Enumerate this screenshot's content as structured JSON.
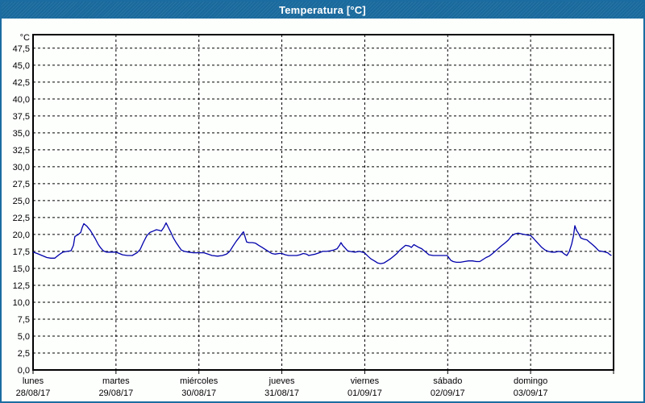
{
  "window": {
    "title": "Temperatura [°C]"
  },
  "colors": {
    "titlebar_bg": "#1b6ca1",
    "titlebar_text": "#ffffff",
    "window_border": "#1b6ca1",
    "content_bg": "#fdfffd",
    "plot_border": "#000000",
    "gridline": "#000000",
    "line": "#0000aa",
    "label_text": "#000000"
  },
  "chart_data": {
    "type": "line",
    "title": "Temperatura [°C]",
    "y_unit_label": "°C",
    "ylim": [
      0,
      49.5
    ],
    "y_tick_step": 2.5,
    "y_tick_labels": [
      "0,0",
      "2,5",
      "5,0",
      "7,5",
      "10,0",
      "12,5",
      "15,0",
      "17,5",
      "20,0",
      "22,5",
      "25,0",
      "27,5",
      "30,0",
      "32,5",
      "35,0",
      "37,5",
      "40,0",
      "42,5",
      "45,0",
      "47,5"
    ],
    "grid": "dashed",
    "legend": "none",
    "x_range_hours": [
      0,
      168
    ],
    "x_days": [
      {
        "name": "lunes",
        "date": "28/08/17"
      },
      {
        "name": "martes",
        "date": "29/08/17"
      },
      {
        "name": "miércoles",
        "date": "30/08/17"
      },
      {
        "name": "jueves",
        "date": "31/08/17"
      },
      {
        "name": "viernes",
        "date": "01/09/17"
      },
      {
        "name": "sábado",
        "date": "02/09/17"
      },
      {
        "name": "domingo",
        "date": "03/09/17"
      }
    ],
    "series": [
      {
        "name": "Temperatura",
        "color": "#0000aa",
        "points": [
          [
            0,
            17.4
          ],
          [
            1.2,
            17.2
          ],
          [
            2.6,
            16.9
          ],
          [
            4.0,
            16.6
          ],
          [
            5.1,
            16.5
          ],
          [
            6.3,
            16.5
          ],
          [
            7.5,
            17.0
          ],
          [
            8.6,
            17.4
          ],
          [
            9.8,
            17.5
          ],
          [
            11.0,
            17.6
          ],
          [
            11.7,
            18.4
          ],
          [
            12.1,
            19.7
          ],
          [
            13.1,
            20.0
          ],
          [
            13.8,
            20.3
          ],
          [
            14.2,
            21.0
          ],
          [
            14.7,
            21.6
          ],
          [
            15.6,
            21.2
          ],
          [
            16.6,
            20.6
          ],
          [
            17.3,
            20.0
          ],
          [
            18.0,
            19.4
          ],
          [
            18.9,
            18.5
          ],
          [
            19.6,
            18.0
          ],
          [
            20.3,
            17.6
          ],
          [
            21.2,
            17.4
          ],
          [
            22.6,
            17.4
          ],
          [
            23.8,
            17.4
          ],
          [
            24.0,
            17.4
          ],
          [
            25.0,
            17.2
          ],
          [
            25.9,
            17.0
          ],
          [
            27.3,
            16.9
          ],
          [
            28.7,
            16.9
          ],
          [
            30.1,
            17.3
          ],
          [
            31.0,
            17.8
          ],
          [
            31.9,
            18.8
          ],
          [
            32.9,
            19.8
          ],
          [
            33.8,
            20.3
          ],
          [
            34.8,
            20.5
          ],
          [
            35.7,
            20.7
          ],
          [
            36.6,
            20.6
          ],
          [
            37.1,
            20.5
          ],
          [
            37.8,
            21.0
          ],
          [
            38.5,
            21.7
          ],
          [
            39.2,
            21.0
          ],
          [
            39.9,
            20.3
          ],
          [
            40.6,
            19.5
          ],
          [
            41.3,
            18.9
          ],
          [
            42.2,
            18.2
          ],
          [
            42.9,
            17.7
          ],
          [
            43.8,
            17.5
          ],
          [
            45.0,
            17.4
          ],
          [
            46.4,
            17.3
          ],
          [
            47.8,
            17.3
          ],
          [
            48.0,
            17.3
          ],
          [
            49.5,
            17.3
          ],
          [
            50.6,
            17.1
          ],
          [
            51.8,
            16.9
          ],
          [
            53.4,
            16.8
          ],
          [
            54.8,
            16.9
          ],
          [
            56.0,
            17.1
          ],
          [
            56.9,
            17.5
          ],
          [
            57.9,
            18.3
          ],
          [
            58.8,
            19.0
          ],
          [
            59.7,
            19.6
          ],
          [
            60.4,
            20.1
          ],
          [
            60.9,
            20.4
          ],
          [
            61.4,
            19.6
          ],
          [
            61.8,
            18.9
          ],
          [
            62.5,
            18.8
          ],
          [
            63.5,
            18.8
          ],
          [
            64.4,
            18.7
          ],
          [
            65.3,
            18.4
          ],
          [
            66.3,
            18.1
          ],
          [
            67.2,
            17.8
          ],
          [
            68.1,
            17.5
          ],
          [
            69.1,
            17.2
          ],
          [
            70.0,
            17.1
          ],
          [
            71.2,
            17.2
          ],
          [
            72.0,
            17.2
          ],
          [
            73.0,
            17.0
          ],
          [
            74.0,
            16.9
          ],
          [
            75.1,
            16.9
          ],
          [
            76.3,
            16.9
          ],
          [
            77.2,
            17.0
          ],
          [
            78.2,
            17.2
          ],
          [
            79.1,
            17.1
          ],
          [
            79.8,
            16.9
          ],
          [
            80.7,
            17.0
          ],
          [
            81.7,
            17.1
          ],
          [
            82.8,
            17.3
          ],
          [
            83.8,
            17.5
          ],
          [
            84.9,
            17.5
          ],
          [
            86.1,
            17.6
          ],
          [
            87.0,
            17.7
          ],
          [
            88.0,
            17.9
          ],
          [
            88.7,
            18.4
          ],
          [
            89.1,
            18.8
          ],
          [
            89.6,
            18.4
          ],
          [
            90.3,
            18.0
          ],
          [
            91.0,
            17.6
          ],
          [
            91.7,
            17.5
          ],
          [
            93.1,
            17.4
          ],
          [
            94.5,
            17.5
          ],
          [
            95.9,
            17.3
          ],
          [
            96.9,
            16.8
          ],
          [
            97.8,
            16.4
          ],
          [
            98.8,
            16.1
          ],
          [
            99.7,
            15.8
          ],
          [
            100.6,
            15.7
          ],
          [
            101.6,
            15.8
          ],
          [
            102.5,
            16.1
          ],
          [
            103.4,
            16.4
          ],
          [
            104.4,
            16.8
          ],
          [
            105.3,
            17.2
          ],
          [
            106.2,
            17.7
          ],
          [
            107.1,
            18.1
          ],
          [
            107.8,
            18.4
          ],
          [
            108.8,
            18.3
          ],
          [
            109.5,
            18.1
          ],
          [
            110.2,
            18.5
          ],
          [
            110.9,
            18.3
          ],
          [
            111.6,
            18.1
          ],
          [
            112.5,
            17.9
          ],
          [
            113.2,
            17.6
          ],
          [
            113.9,
            17.3
          ],
          [
            114.6,
            17.0
          ],
          [
            115.8,
            16.9
          ],
          [
            117.2,
            16.9
          ],
          [
            118.6,
            16.9
          ],
          [
            119.8,
            16.9
          ],
          [
            120.0,
            16.8
          ],
          [
            120.9,
            16.2
          ],
          [
            121.6,
            16.0
          ],
          [
            122.5,
            15.9
          ],
          [
            123.7,
            15.9
          ],
          [
            124.8,
            16.0
          ],
          [
            126.0,
            16.1
          ],
          [
            127.2,
            16.1
          ],
          [
            128.3,
            16.0
          ],
          [
            129.3,
            16.0
          ],
          [
            130.2,
            16.3
          ],
          [
            131.1,
            16.6
          ],
          [
            132.0,
            16.8
          ],
          [
            133.0,
            17.2
          ],
          [
            133.9,
            17.6
          ],
          [
            134.8,
            18.0
          ],
          [
            135.7,
            18.4
          ],
          [
            136.7,
            18.8
          ],
          [
            137.6,
            19.2
          ],
          [
            138.5,
            19.8
          ],
          [
            139.5,
            20.1
          ],
          [
            140.4,
            20.2
          ],
          [
            141.3,
            20.1
          ],
          [
            142.2,
            20.0
          ],
          [
            143.2,
            19.9
          ],
          [
            143.9,
            19.9
          ],
          [
            144.7,
            19.5
          ],
          [
            145.4,
            19.1
          ],
          [
            146.3,
            18.6
          ],
          [
            147.2,
            18.1
          ],
          [
            148.2,
            17.7
          ],
          [
            149.1,
            17.5
          ],
          [
            150.0,
            17.4
          ],
          [
            151.2,
            17.4
          ],
          [
            152.1,
            17.5
          ],
          [
            153.1,
            17.4
          ],
          [
            153.8,
            17.1
          ],
          [
            154.5,
            16.9
          ],
          [
            155.2,
            17.5
          ],
          [
            155.9,
            18.6
          ],
          [
            156.4,
            19.8
          ],
          [
            156.8,
            21.3
          ],
          [
            157.3,
            20.6
          ],
          [
            157.8,
            20.2
          ],
          [
            158.5,
            19.5
          ],
          [
            159.4,
            19.3
          ],
          [
            160.3,
            19.2
          ],
          [
            161.0,
            18.9
          ],
          [
            161.9,
            18.5
          ],
          [
            162.8,
            18.1
          ],
          [
            163.7,
            17.6
          ],
          [
            164.7,
            17.5
          ],
          [
            165.6,
            17.4
          ],
          [
            166.3,
            17.3
          ],
          [
            167.0,
            17.0
          ],
          [
            167.4,
            16.9
          ]
        ]
      }
    ]
  }
}
